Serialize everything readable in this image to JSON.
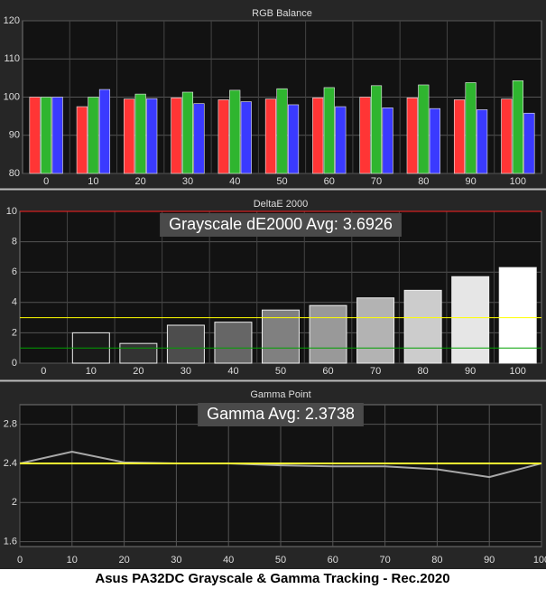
{
  "chart_data": [
    {
      "type": "bar",
      "title": "RGB Balance",
      "categories": [
        "0",
        "10",
        "20",
        "30",
        "40",
        "50",
        "60",
        "70",
        "80",
        "90",
        "100"
      ],
      "series": [
        {
          "name": "Red",
          "color": "#ff3535",
          "values": [
            100,
            97.5,
            99.5,
            99.8,
            99.3,
            99.5,
            99.8,
            100,
            99.8,
            99.3,
            99.5
          ]
        },
        {
          "name": "Green",
          "color": "#2fb52f",
          "values": [
            100,
            100,
            100.8,
            101.3,
            101.8,
            102.2,
            102.5,
            103,
            103.2,
            103.8,
            104.3
          ]
        },
        {
          "name": "Blue",
          "color": "#3a3aff",
          "values": [
            100,
            102,
            99.6,
            98.3,
            98.8,
            98,
            97.5,
            97.2,
            97,
            96.7,
            95.8
          ]
        }
      ],
      "ylim": [
        80,
        120
      ],
      "yticks": [
        80,
        90,
        100,
        110,
        120
      ],
      "grid": true
    },
    {
      "type": "bar",
      "title": "DeltaE 2000",
      "annotation": "Grayscale dE2000 Avg: 3.6926",
      "categories": [
        "0",
        "10",
        "20",
        "30",
        "40",
        "50",
        "60",
        "70",
        "80",
        "90",
        "100"
      ],
      "values": [
        0,
        2.0,
        1.3,
        2.5,
        2.7,
        3.5,
        3.8,
        4.3,
        4.8,
        5.7,
        6.3
      ],
      "colors": [
        "#000000",
        "#1a1a1a",
        "#333333",
        "#4d4d4d",
        "#666666",
        "#808080",
        "#999999",
        "#b3b3b3",
        "#cccccc",
        "#e6e6e6",
        "#ffffff"
      ],
      "reference_lines": [
        {
          "value": 10,
          "color": "#ff2020"
        },
        {
          "value": 3,
          "color": "#ffff00"
        },
        {
          "value": 1,
          "color": "#00a000"
        }
      ],
      "ylim": [
        0,
        10
      ],
      "yticks": [
        0,
        2,
        4,
        6,
        8,
        10
      ],
      "grid": true
    },
    {
      "type": "line",
      "title": "Gamma Point",
      "annotation": "Gamma Avg: 2.3738",
      "x": [
        0,
        10,
        20,
        30,
        40,
        50,
        60,
        70,
        80,
        90,
        100
      ],
      "values": [
        2.4,
        2.52,
        2.41,
        2.4,
        2.4,
        2.38,
        2.37,
        2.37,
        2.34,
        2.26,
        2.4
      ],
      "color": "#a8a8a8",
      "reference_lines": [
        {
          "value": 2.4,
          "color": "#ffff33"
        }
      ],
      "xlim": [
        0,
        100
      ],
      "xticks": [
        0,
        10,
        20,
        30,
        40,
        50,
        60,
        70,
        80,
        90,
        100
      ],
      "ylim": [
        1.55,
        3.0
      ],
      "yticks": [
        1.6,
        2,
        2.4,
        2.8
      ],
      "grid": true
    }
  ],
  "footer": "Asus PA32DC Grayscale & Gamma Tracking - Rec.2020"
}
